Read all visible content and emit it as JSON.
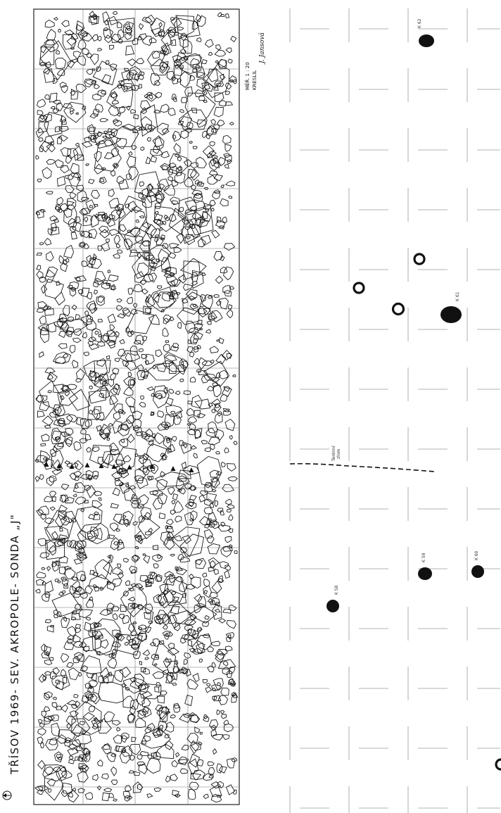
{
  "left_plan": {
    "title": "TŘÍSOV 1969- SEV. AKROPOLE- SONDA „J\"",
    "scale": "MĚŘ. 1 : 20",
    "drawn_by": "KRESLIL",
    "signature": "J. Jansová",
    "north_icon": "north-arrow-icon"
  },
  "right_plan": {
    "features": {
      "k62": "K 62",
      "k61": "K 61",
      "k59": "K 59",
      "k60": "K 60",
      "k58": "K 58"
    },
    "terrain_label_1": "Terénní",
    "terrain_label_2": "zlom"
  },
  "colors": {
    "ink": "#111111",
    "grid": "#9a9a9a"
  }
}
